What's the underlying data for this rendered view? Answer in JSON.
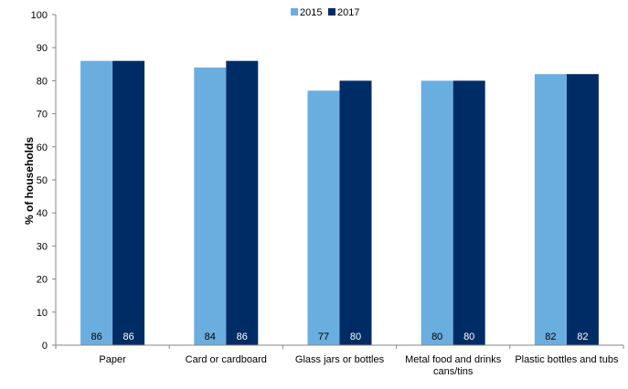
{
  "chart_data": {
    "type": "bar",
    "ylabel": "% of households",
    "ylim": [
      0,
      100
    ],
    "yticks": [
      0,
      10,
      20,
      30,
      40,
      50,
      60,
      70,
      80,
      90,
      100
    ],
    "categories": [
      "Paper",
      "Card or cardboard",
      "Glass jars or bottles",
      "Metal food and drinks cans/tins",
      "Plastic bottles and tubs"
    ],
    "series": [
      {
        "name": "2015",
        "color": "#6aaee0",
        "values": [
          86,
          84,
          77,
          80,
          82
        ]
      },
      {
        "name": "2017",
        "color": "#002c66",
        "values": [
          86,
          86,
          80,
          80,
          82
        ]
      }
    ],
    "legend": "top-center",
    "grid": false,
    "data_labels": true
  }
}
